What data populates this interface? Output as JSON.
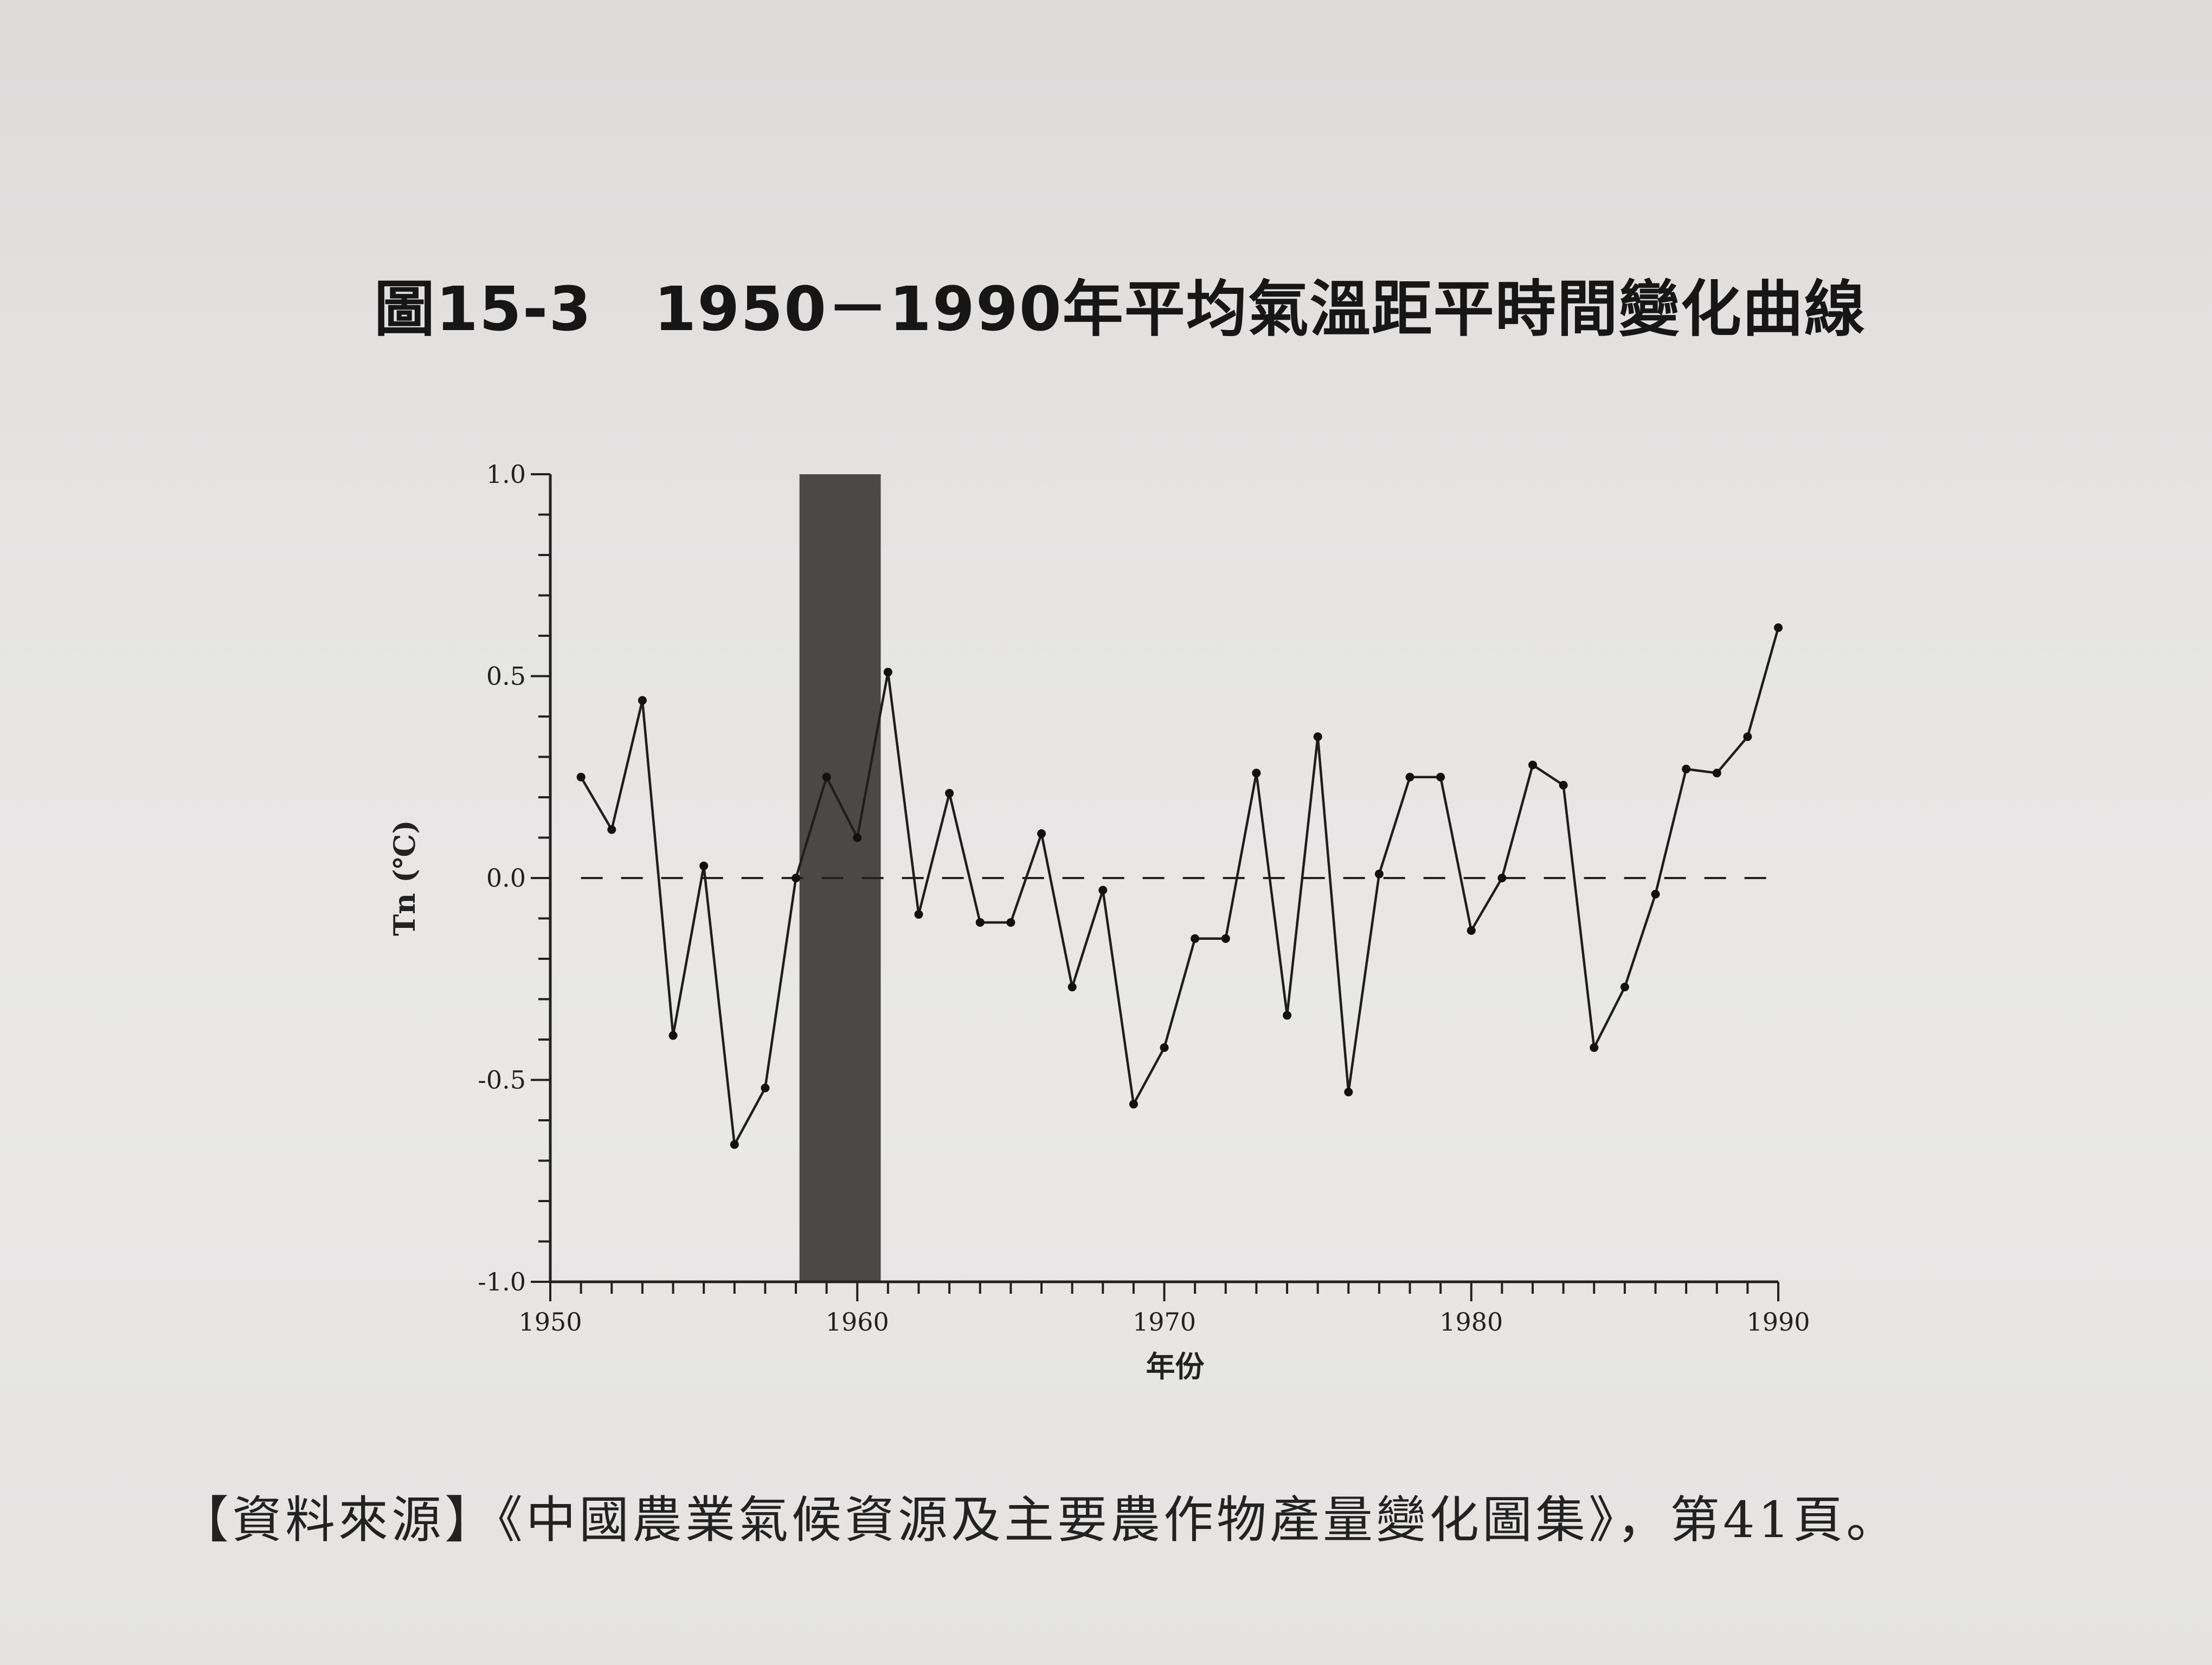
{
  "figure": {
    "title": "圖15-3　1950－1990年平均氣溫距平時間變化曲線",
    "source": "【資料來源】《中國農業氣候資源及主要農作物產量變化圖集》，第41頁。"
  },
  "chart_data": {
    "type": "line",
    "title": "",
    "xlabel": "年份",
    "ylabel": "Tn (℃)",
    "xlim": [
      1950,
      1990
    ],
    "ylim": [
      -1.0,
      1.0
    ],
    "xticks": [
      "1950",
      "1960",
      "1970",
      "1980",
      "1990"
    ],
    "yticks": [
      "1.0",
      "0.5",
      "0.0",
      "-0.5",
      "-1.0"
    ],
    "reference_line": 0.0,
    "shaded_band": [
      1959,
      1962
    ],
    "grid": false,
    "series": [
      {
        "x": [
          1951,
          1952,
          1953,
          1954,
          1955,
          1956,
          1957,
          1958,
          1959,
          1960,
          1961,
          1962,
          1963,
          1964,
          1965,
          1966,
          1967,
          1968,
          1969,
          1970,
          1971,
          1972,
          1973,
          1974,
          1975,
          1976,
          1977,
          1978,
          1979,
          1980,
          1981,
          1982,
          1983,
          1984,
          1985,
          1986,
          1987,
          1988,
          1989,
          1990
        ],
        "values": [
          0.25,
          0.12,
          0.44,
          -0.39,
          0.03,
          -0.66,
          -0.52,
          0.0,
          0.25,
          0.1,
          0.51,
          -0.09,
          0.21,
          -0.11,
          -0.11,
          0.11,
          -0.27,
          -0.03,
          -0.56,
          -0.42,
          -0.15,
          -0.15,
          0.26,
          -0.34,
          0.35,
          -0.53,
          0.01,
          0.25,
          0.25,
          -0.13,
          0.0,
          0.28,
          0.23,
          -0.42,
          -0.27,
          -0.04,
          0.27,
          0.26,
          0.35,
          0.62
        ]
      }
    ]
  }
}
